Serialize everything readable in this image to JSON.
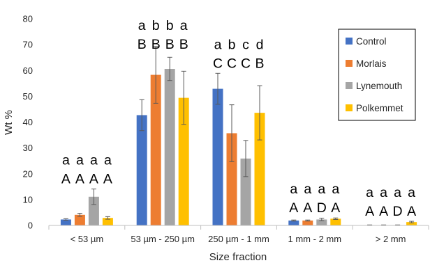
{
  "chart_data": {
    "type": "bar",
    "title": "",
    "xlabel": "Size fraction",
    "ylabel": "Wt %",
    "ylim": [
      0,
      80
    ],
    "yticks": [
      0,
      10,
      20,
      30,
      40,
      50,
      60,
      70,
      80
    ],
    "grid": false,
    "legend_position": "right",
    "categories": [
      "< 53 µm",
      "53 µm - 250 µm",
      "250 µm - 1 mm",
      "1 mm - 2 mm",
      "> 2 mm"
    ],
    "series": [
      {
        "name": "Control",
        "color": "#4472C4",
        "values": [
          2.3,
          42.7,
          52.9,
          1.9,
          0.1
        ],
        "error": [
          0.3,
          6.0,
          6.0,
          0.2,
          0.1
        ]
      },
      {
        "name": "Morlais",
        "color": "#ED7D31",
        "values": [
          4.1,
          58.3,
          35.7,
          1.9,
          0.1
        ],
        "error": [
          0.6,
          11.0,
          11.0,
          0.2,
          0.1
        ]
      },
      {
        "name": "Lynemouth",
        "color": "#A5A5A5",
        "values": [
          11.1,
          60.6,
          25.9,
          2.3,
          0.1
        ],
        "error": [
          3.0,
          4.5,
          7.0,
          0.5,
          0.1
        ]
      },
      {
        "name": "Polkemmet",
        "color": "#FFC000",
        "values": [
          2.9,
          49.4,
          43.6,
          2.6,
          1.3
        ],
        "error": [
          0.5,
          10.3,
          10.5,
          0.3,
          0.3
        ]
      }
    ],
    "significance": [
      {
        "lower": [
          "a",
          "a",
          "a",
          "a"
        ],
        "upper": [
          "A",
          "A",
          "A",
          "A"
        ]
      },
      {
        "lower": [
          "a",
          "b",
          "b",
          "a"
        ],
        "upper": [
          "B",
          "B",
          "B",
          "B"
        ]
      },
      {
        "lower": [
          "a",
          "b",
          "c",
          "d"
        ],
        "upper": [
          "C",
          "C",
          "C",
          "B"
        ]
      },
      {
        "lower": [
          "a",
          "a",
          "a",
          "a"
        ],
        "upper": [
          "A",
          "A",
          "D",
          "A"
        ]
      },
      {
        "lower": [
          "a",
          "a",
          "a",
          "a"
        ],
        "upper": [
          "A",
          "A",
          "D",
          "A"
        ]
      }
    ]
  }
}
